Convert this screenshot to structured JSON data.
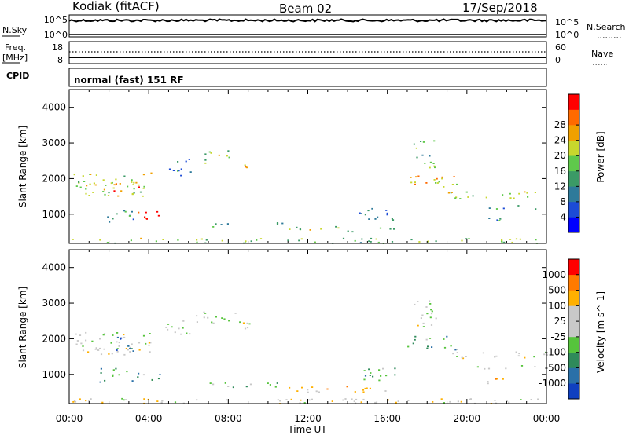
{
  "header": {
    "station": "Kodiak (fitACF)",
    "beam": "Beam 02",
    "date": "17/Sep/2018"
  },
  "top_panels": {
    "nsky_label": "N.Sky",
    "nsearch_label": "N.Search",
    "nsky_ticks": [
      "10^5",
      "10^0"
    ],
    "nsearch_ticks": [
      "10^5",
      "10^0"
    ],
    "freq_label_1": "Freq.",
    "freq_label_2": "[MHz]",
    "freq_ticks": [
      "18",
      "8"
    ],
    "nave_label": "Nave",
    "nave_ticks": [
      "60",
      "0"
    ],
    "cpid_label": "CPID",
    "cpid_value": "normal (fast) 151 RF"
  },
  "x_axis": {
    "label": "Time UT",
    "ticks": [
      "00:00",
      "04:00",
      "08:00",
      "12:00",
      "16:00",
      "20:00",
      "00:00"
    ]
  },
  "chart_data": [
    {
      "type": "heatmap",
      "title": "",
      "xlabel": "Time UT",
      "ylabel": "Slant Range [km]",
      "xlim": [
        0,
        24
      ],
      "ylim": [
        180,
        4500
      ],
      "y_ticks": [
        "1000",
        "2000",
        "3000",
        "4000"
      ],
      "colorbar": {
        "label": "Power [dB]",
        "ticks": [
          "4",
          "8",
          "12",
          "16",
          "20",
          "24",
          "28"
        ],
        "colors": [
          "#0000ff",
          "#1c4bd6",
          "#2e7a9a",
          "#3b9a66",
          "#5fc94b",
          "#c8d72d",
          "#f0a000",
          "#ff6a00",
          "#ff0000"
        ]
      },
      "patches": [
        {
          "t": [
            0.2,
            4.2
          ],
          "r": [
            1500,
            2200
          ],
          "level": 0.55
        },
        {
          "t": [
            2.0,
            3.6
          ],
          "r": [
            1650,
            1900
          ],
          "level": 0.9
        },
        {
          "t": [
            3.4,
            4.6
          ],
          "r": [
            820,
            1100
          ],
          "level": 0.95
        },
        {
          "t": [
            1.5,
            3.2
          ],
          "r": [
            800,
            1200
          ],
          "level": 0.35
        },
        {
          "t": [
            4.8,
            6.2
          ],
          "r": [
            2100,
            2600
          ],
          "level": 0.3
        },
        {
          "t": [
            6.3,
            8.6
          ],
          "r": [
            2450,
            2800
          ],
          "level": 0.55
        },
        {
          "t": [
            8.5,
            9.6
          ],
          "r": [
            2300,
            2550
          ],
          "level": 0.7
        },
        {
          "t": [
            7.0,
            11.0
          ],
          "r": [
            640,
            780
          ],
          "level": 0.3
        },
        {
          "t": [
            10.5,
            16.5
          ],
          "r": [
            500,
            680
          ],
          "level": 0.5
        },
        {
          "t": [
            14.5,
            16.5
          ],
          "r": [
            850,
            1200
          ],
          "level": 0.3
        },
        {
          "t": [
            17.3,
            18.5
          ],
          "r": [
            2300,
            3100
          ],
          "level": 0.45
        },
        {
          "t": [
            17.0,
            19.5
          ],
          "r": [
            1700,
            2100
          ],
          "level": 0.7
        },
        {
          "t": [
            19.0,
            24.0
          ],
          "r": [
            1450,
            1650
          ],
          "level": 0.55
        },
        {
          "t": [
            20.5,
            23.5
          ],
          "r": [
            1150,
            1300
          ],
          "level": 0.35
        },
        {
          "t": [
            21.0,
            22.0
          ],
          "r": [
            700,
            950
          ],
          "level": 0.3
        },
        {
          "t": [
            0.0,
            24.0
          ],
          "r": [
            200,
            340
          ],
          "level": 0.5
        }
      ]
    },
    {
      "type": "heatmap",
      "title": "",
      "xlabel": "Time UT",
      "ylabel": "Slant Range [km]",
      "xlim": [
        0,
        24
      ],
      "ylim": [
        180,
        4500
      ],
      "y_ticks": [
        "1000",
        "2000",
        "3000",
        "4000"
      ],
      "colorbar": {
        "label": "Velocity [m s^-1]",
        "ticks": [
          "1000",
          "500",
          "100",
          "25",
          "-25",
          "-100",
          "-500",
          "-1000"
        ],
        "colors": [
          "#1040c0",
          "#2a70a8",
          "#2f8a5a",
          "#56c43c",
          "#c8c8c8",
          "#c8c8c8",
          "#ffb000",
          "#ff7a00",
          "#ff0000"
        ]
      },
      "patches": [
        {
          "t": [
            0.2,
            4.2
          ],
          "r": [
            1500,
            2200
          ],
          "level": 0.55
        },
        {
          "t": [
            2.3,
            3.2
          ],
          "r": [
            1600,
            2100
          ],
          "level": 0.2
        },
        {
          "t": [
            3.4,
            4.6
          ],
          "r": [
            820,
            1100
          ],
          "level": 0.35
        },
        {
          "t": [
            1.5,
            3.2
          ],
          "r": [
            800,
            1200
          ],
          "level": 0.33
        },
        {
          "t": [
            4.8,
            6.2
          ],
          "r": [
            2100,
            2600
          ],
          "level": 0.5
        },
        {
          "t": [
            6.3,
            8.6
          ],
          "r": [
            2450,
            2800
          ],
          "level": 0.5
        },
        {
          "t": [
            8.5,
            9.6
          ],
          "r": [
            2300,
            2550
          ],
          "level": 0.5
        },
        {
          "t": [
            7.0,
            11.0
          ],
          "r": [
            640,
            780
          ],
          "level": 0.4
        },
        {
          "t": [
            10.5,
            16.5
          ],
          "r": [
            500,
            680
          ],
          "level": 0.62
        },
        {
          "t": [
            14.5,
            16.5
          ],
          "r": [
            850,
            1200
          ],
          "level": 0.35
        },
        {
          "t": [
            17.3,
            18.5
          ],
          "r": [
            2300,
            3100
          ],
          "level": 0.5
        },
        {
          "t": [
            17.0,
            19.5
          ],
          "r": [
            1700,
            2100
          ],
          "level": 0.3
        },
        {
          "t": [
            19.0,
            24.0
          ],
          "r": [
            1450,
            1650
          ],
          "level": 0.55
        },
        {
          "t": [
            20.5,
            23.5
          ],
          "r": [
            1150,
            1300
          ],
          "level": 0.55
        },
        {
          "t": [
            21.0,
            22.0
          ],
          "r": [
            700,
            950
          ],
          "level": 0.72
        },
        {
          "t": [
            0.0,
            24.0
          ],
          "r": [
            200,
            340
          ],
          "level": 0.6
        }
      ]
    }
  ]
}
